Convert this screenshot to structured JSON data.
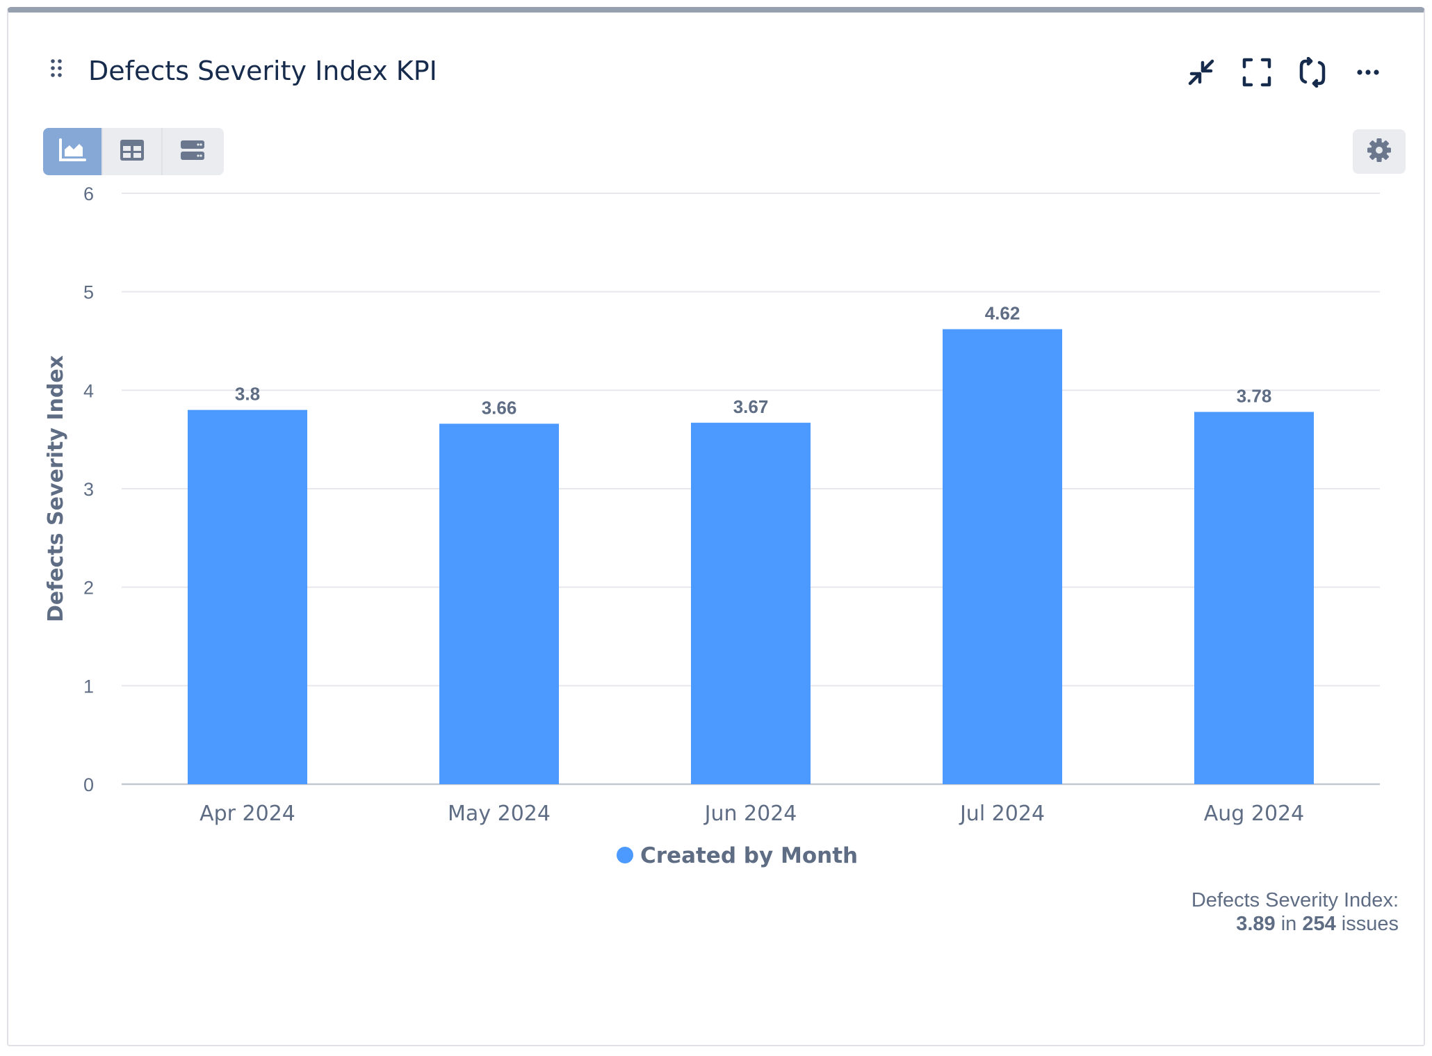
{
  "header": {
    "title": "Defects Severity Index KPI",
    "icons": [
      "drag-handle-icon",
      "collapse-icon",
      "fullscreen-icon",
      "refresh-icon",
      "more-options-icon"
    ]
  },
  "view_toggle": {
    "options": [
      "chart-view-icon",
      "table-view-icon",
      "list-view-icon"
    ],
    "active": "chart-view-icon"
  },
  "settings": {
    "icon": "gear-icon"
  },
  "colors": {
    "bar": "#4c9aff",
    "title": "#172b4d",
    "header_border": "#97a0af",
    "toggle_active": "#86a8d6"
  },
  "chart_data": {
    "type": "bar",
    "categories": [
      "Apr 2024",
      "May 2024",
      "Jun 2024",
      "Jul 2024",
      "Aug 2024"
    ],
    "series": [
      {
        "name": "Created by Month",
        "values": [
          3.8,
          3.66,
          3.67,
          4.62,
          3.78
        ]
      }
    ],
    "ylabel": "Defects Severity Index",
    "ylim": [
      0,
      6
    ],
    "yticks": [
      "0",
      "1",
      "2",
      "3",
      "4",
      "5",
      "6"
    ],
    "grid": true,
    "legend": "bottom-center",
    "data_labels": [
      "3.8",
      "3.66",
      "3.67",
      "4.62",
      "3.78"
    ]
  },
  "summary": {
    "label": "Defects Severity Index:",
    "value": "3.89",
    "in_text": "in",
    "count": "254",
    "unit": "issues"
  }
}
